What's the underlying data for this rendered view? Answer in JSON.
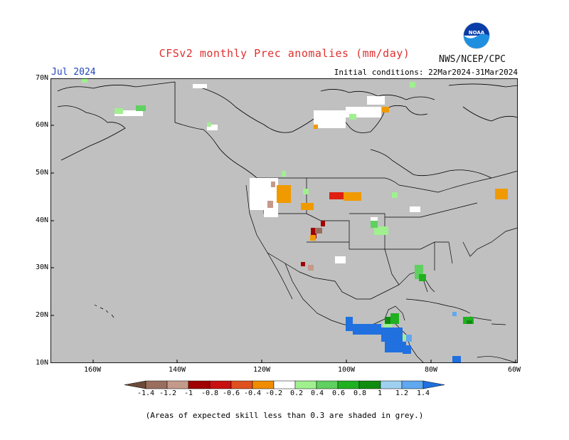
{
  "title": "CFSv2 monthly Prec anomalies (mm/day)",
  "target_month": "Jul 2024",
  "initial_conditions": "Initial conditions: 22Mar2024-31Mar2024",
  "agency": "NWS/NCEP/CPC",
  "logo_text": "NOAA",
  "lat_labels": [
    "70N",
    "60N",
    "50N",
    "40N",
    "30N",
    "20N",
    "10N"
  ],
  "lon_labels": [
    "160W",
    "140W",
    "120W",
    "100W",
    "80W",
    "60W"
  ],
  "colorbar": {
    "labels": [
      "-1.4",
      "-1.2",
      "-1",
      "-0.8",
      "-0.6",
      "-0.4",
      "-0.2",
      "0.2",
      "0.4",
      "0.6",
      "0.8",
      "1",
      "1.2",
      "1.4"
    ],
    "colors": [
      "#6b4a3a",
      "#9a6e5e",
      "#c49a8a",
      "#a00000",
      "#c81010",
      "#e05020",
      "#f08c00",
      "#ffffff",
      "#a0f090",
      "#60d060",
      "#20b020",
      "#108c10",
      "#a0d0f0",
      "#60a8f0",
      "#2070e0"
    ]
  },
  "background_color": "#c0c0c0",
  "note": "(Areas of expected skill less than 0.3 are shaded in grey.)"
}
